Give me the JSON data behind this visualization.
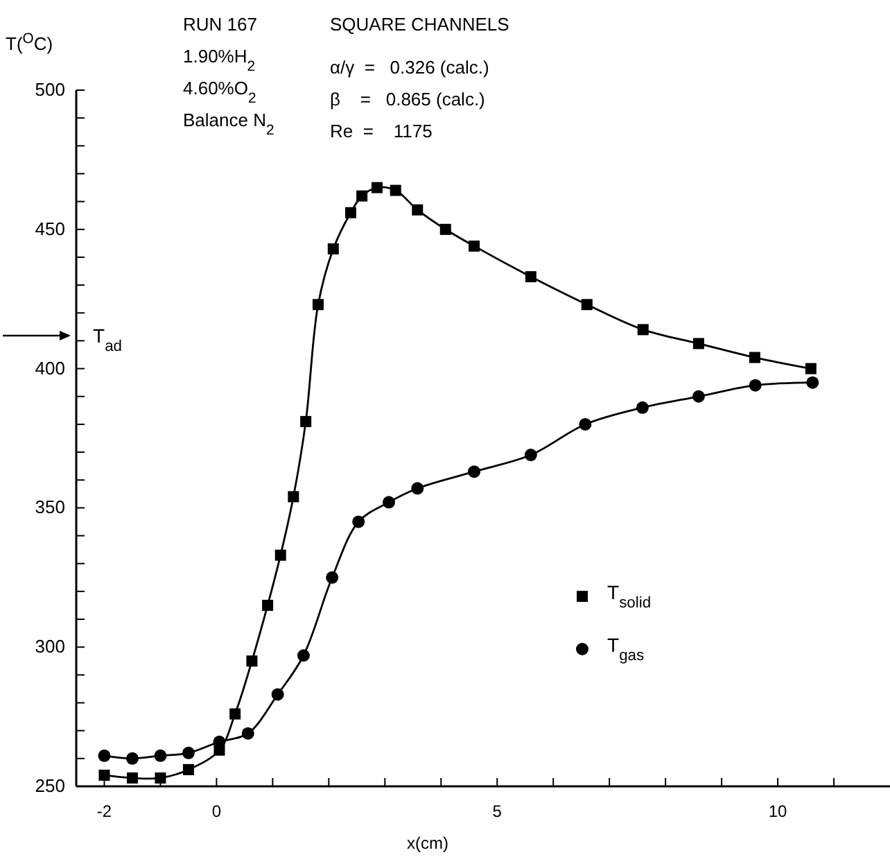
{
  "chart_data": {
    "type": "line",
    "xlabel": "x(cm)",
    "ylabel": "T($^{O}$C)",
    "xlim": [
      -2.5,
      12
    ],
    "ylim": [
      250,
      500
    ],
    "xticks": [
      -2,
      {
        "value": -1,
        "label": null
      },
      0,
      {
        "value": 1,
        "label": null
      },
      {
        "value": 2,
        "label": null
      },
      {
        "value": 3,
        "label": null
      },
      {
        "value": 4,
        "label": null
      },
      5,
      {
        "value": 6,
        "label": null
      },
      {
        "value": 7,
        "label": null
      },
      {
        "value": 8,
        "label": null
      },
      {
        "value": 9,
        "label": null
      },
      10,
      {
        "value": 11,
        "label": null
      }
    ],
    "yticks": [
      250,
      {
        "value": 260,
        "label": null
      },
      {
        "value": 270,
        "label": null
      },
      {
        "value": 280,
        "label": null
      },
      {
        "value": 290,
        "label": null
      },
      300,
      {
        "value": 310,
        "label": null
      },
      {
        "value": 320,
        "label": null
      },
      {
        "value": 330,
        "label": null
      },
      {
        "value": 340,
        "label": null
      },
      350,
      {
        "value": 360,
        "label": null
      },
      {
        "value": 370,
        "label": null
      },
      {
        "value": 380,
        "label": null
      },
      {
        "value": 390,
        "label": null
      },
      400,
      {
        "value": 410,
        "label": null
      },
      {
        "value": 420,
        "label": null
      },
      {
        "value": 430,
        "label": null
      },
      {
        "value": 440,
        "label": null
      },
      450,
      {
        "value": 460,
        "label": null
      },
      {
        "value": 470,
        "label": null
      },
      {
        "value": 480,
        "label": null
      },
      {
        "value": 490,
        "label": null
      },
      500
    ],
    "grid": false,
    "legend": "bottom right",
    "line_style": "solid",
    "series": [
      {
        "name": "T$_{solid}$",
        "color": "#000000",
        "marker": "square",
        "x": [
          -2,
          -1.5,
          -1,
          -0.5,
          0.05,
          0.33,
          0.63,
          0.91,
          1.14,
          1.37,
          1.59,
          1.81,
          2.08,
          2.39,
          2.59,
          2.86,
          3.19,
          3.58,
          4.08,
          4.59,
          5.6,
          6.6,
          7.6,
          8.59,
          9.59,
          10.59
        ],
        "values": [
          254,
          253,
          253,
          256,
          263,
          276,
          295,
          315,
          333,
          354,
          381,
          423,
          443,
          456,
          462,
          465,
          464,
          457,
          450,
          444,
          433,
          423,
          414,
          409,
          404,
          400
        ]
      },
      {
        "name": "T$_{gas}$",
        "color": "#000000",
        "marker": "circle",
        "x": [
          -2,
          -1.5,
          -1,
          -0.5,
          0.05,
          0.56,
          1.09,
          1.55,
          2.06,
          2.53,
          3.07,
          3.58,
          4.59,
          5.6,
          6.57,
          7.59,
          8.59,
          9.6,
          10.62
        ],
        "values": [
          261,
          260,
          261,
          262,
          266,
          269,
          283,
          297,
          325,
          345,
          352,
          357,
          363,
          369,
          380,
          386,
          390,
          394,
          395
        ]
      }
    ],
    "annotations": [
      "T$_{ad}$",
      "RUN 167",
      "1.90%H$_{2}$",
      "4.60%O$_{2}$",
      "Balance N$_{2}$",
      "SQUARE CHANNELS",
      "α/γ  =   0.326 (calc.)",
      "β    =   0.865 (calc.)",
      "Re  =    1175"
    ]
  }
}
